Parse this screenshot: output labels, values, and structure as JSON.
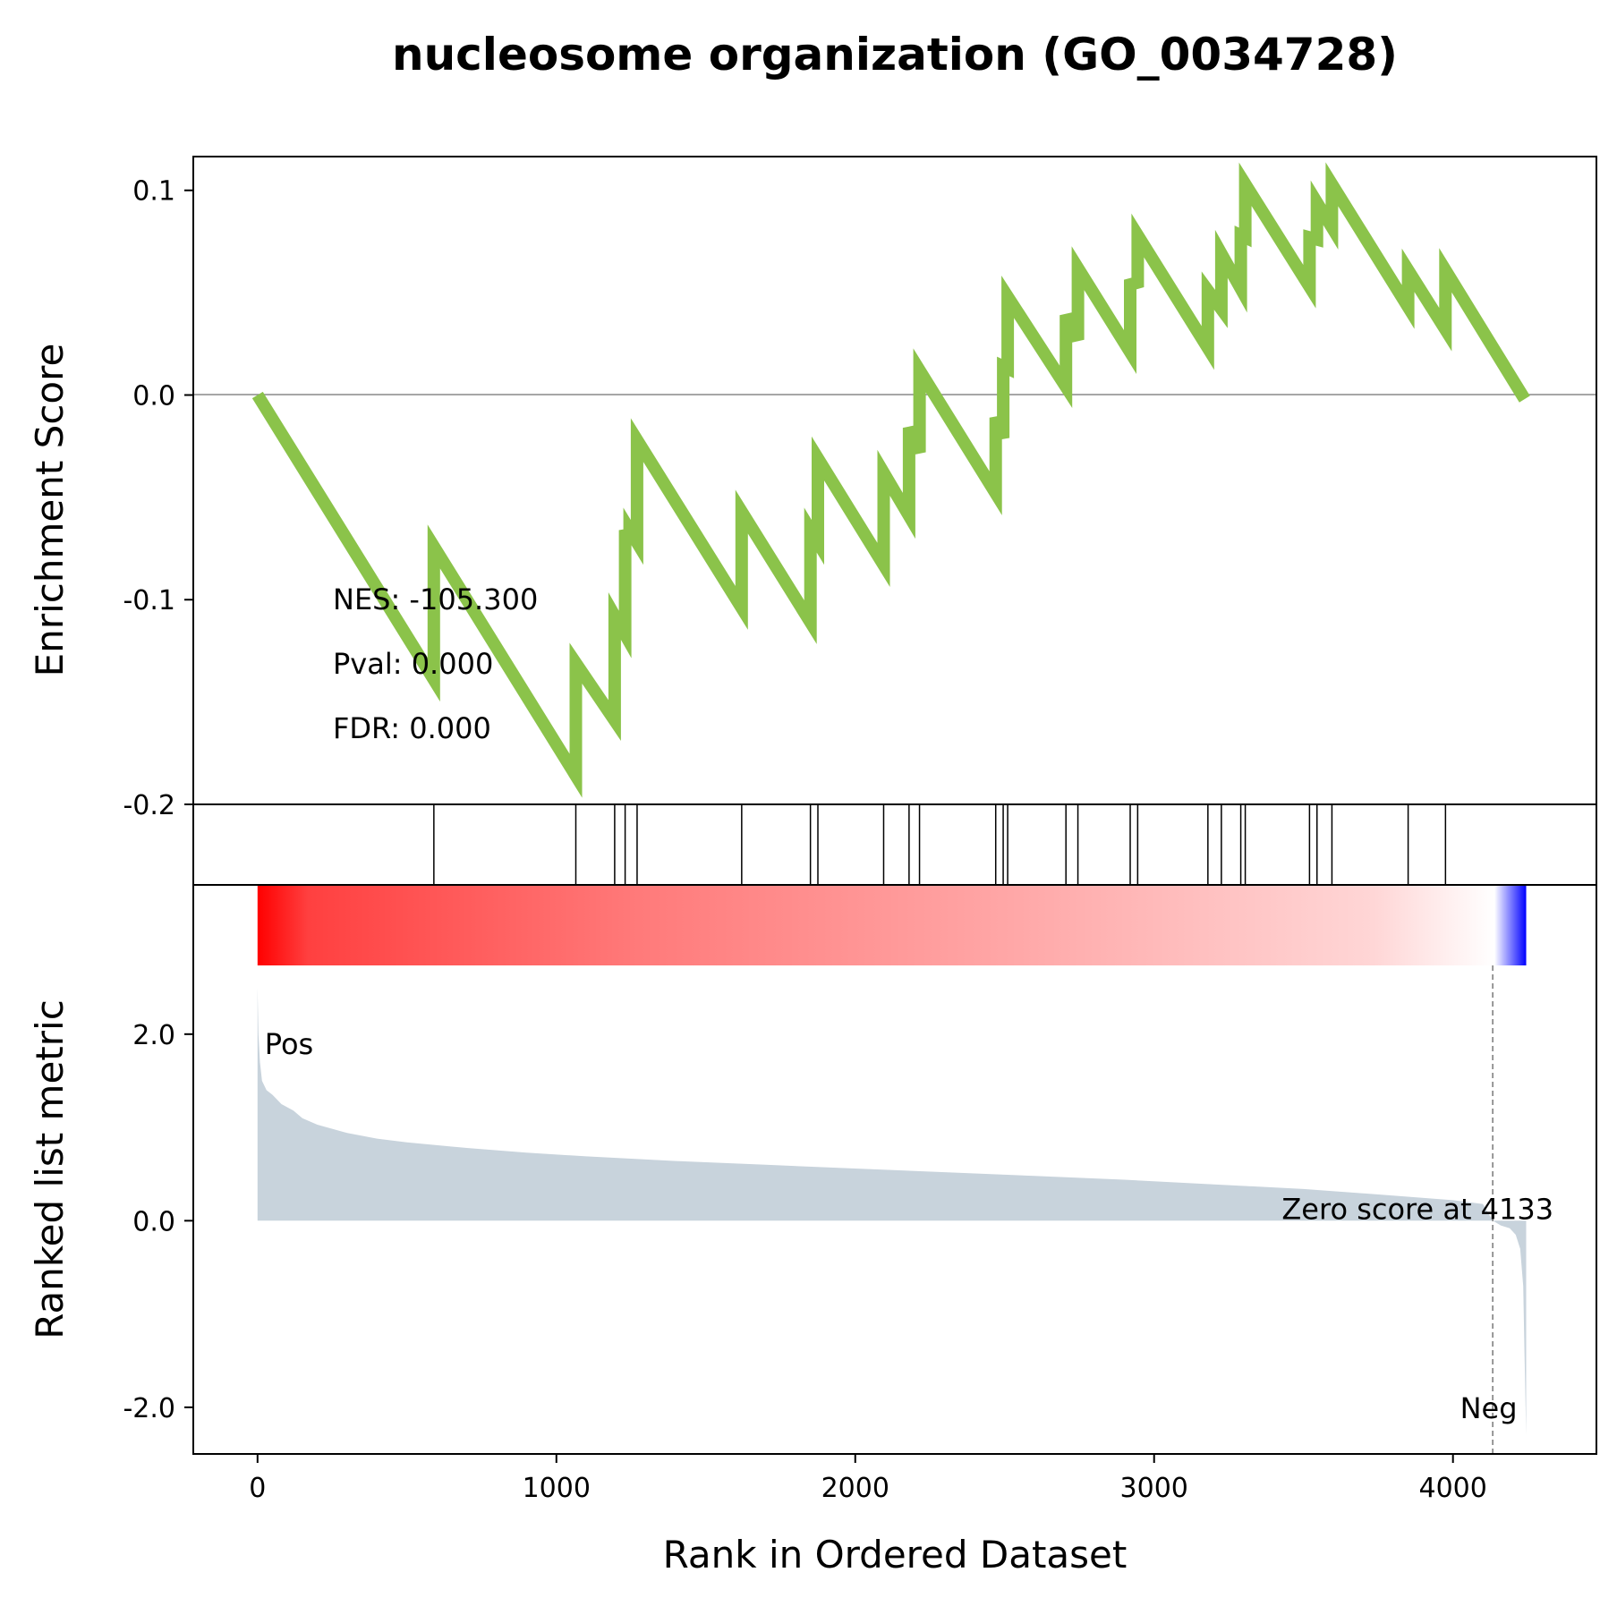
{
  "chart_data": {
    "type": "line",
    "title": "nucleosome organization (GO_0034728)",
    "xlabel": "Rank in Ordered Dataset",
    "x_ticks": [
      0,
      1000,
      2000,
      3000,
      4000
    ],
    "xlim": [
      -215,
      4480
    ],
    "es_panel": {
      "ylabel": "Enrichment Score",
      "ylim": [
        -0.2,
        0.1165
      ],
      "y_ticks": [
        0.1,
        0.0,
        -0.1,
        -0.2
      ],
      "y_tick_labels": [
        "0.1",
        "0.0",
        "-0.1",
        "-0.2"
      ],
      "zero_line": true,
      "line_color": "#8bc34a",
      "running_es": {
        "x": [
          0,
          590,
          590,
          1065,
          1065,
          1195,
          1195,
          1230,
          1230,
          1245,
          1245,
          1270,
          1270,
          1620,
          1620,
          1850,
          1850,
          1875,
          1875,
          2095,
          2095,
          2180,
          2180,
          2215,
          2215,
          2470,
          2470,
          2495,
          2495,
          2510,
          2510,
          2705,
          2705,
          2745,
          2745,
          2920,
          2920,
          2945,
          2945,
          3180,
          3180,
          3225,
          3225,
          3290,
          3290,
          3305,
          3305,
          3520,
          3520,
          3545,
          3545,
          3595,
          3595,
          3850,
          3850,
          3975,
          3975,
          4240
        ],
        "y": [
          0.0,
          -0.139,
          -0.074,
          -0.186,
          -0.131,
          -0.159,
          -0.108,
          -0.117,
          -0.066,
          -0.072,
          -0.066,
          -0.072,
          -0.022,
          -0.104,
          -0.057,
          -0.111,
          -0.066,
          -0.072,
          -0.031,
          -0.083,
          -0.038,
          -0.059,
          -0.016,
          -0.028,
          0.012,
          -0.048,
          -0.011,
          -0.021,
          0.014,
          0.013,
          0.048,
          0.004,
          0.039,
          0.027,
          0.062,
          0.021,
          0.054,
          0.055,
          0.078,
          0.023,
          0.051,
          0.042,
          0.069,
          0.052,
          0.078,
          0.077,
          0.103,
          0.053,
          0.077,
          0.076,
          0.094,
          0.082,
          0.103,
          0.043,
          0.061,
          0.032,
          0.061,
          -0.002
        ]
      },
      "stats": [
        "NES: -105.300",
        "Pval: 0.000",
        "FDR: 0.000"
      ]
    },
    "hits_panel": {
      "hit_ranks": [
        590,
        1065,
        1195,
        1230,
        1270,
        1620,
        1850,
        1875,
        2095,
        2180,
        2215,
        2470,
        2495,
        2510,
        2705,
        2745,
        2920,
        2945,
        3180,
        3225,
        3290,
        3305,
        3520,
        3545,
        3595,
        3850,
        3975
      ]
    },
    "ranked_panel": {
      "ylabel": "Ranked list metric",
      "ylim": [
        -2.5,
        3.6
      ],
      "y_ticks": [
        2.0,
        0.0,
        -2.0
      ],
      "y_tick_labels": [
        "2.0",
        "0.0",
        "-2.0"
      ],
      "fill_color": "#c8d3dc",
      "colorbar_from": "#ff0000",
      "colorbar_to": "#0000ff",
      "metric_curve": {
        "x": [
          0,
          3,
          8,
          15,
          30,
          50,
          80,
          120,
          150,
          200,
          300,
          400,
          500,
          700,
          900,
          1100,
          1400,
          1700,
          2000,
          2300,
          2600,
          2900,
          3200,
          3500,
          3800,
          4000,
          4100,
          4133,
          4160,
          4190,
          4210,
          4225,
          4235,
          4240,
          4245
        ],
        "y": [
          2.5,
          2.0,
          1.7,
          1.5,
          1.4,
          1.35,
          1.25,
          1.18,
          1.1,
          1.03,
          0.94,
          0.88,
          0.84,
          0.78,
          0.73,
          0.69,
          0.64,
          0.6,
          0.56,
          0.52,
          0.48,
          0.44,
          0.39,
          0.34,
          0.27,
          0.22,
          0.18,
          0.0,
          -0.05,
          -0.08,
          -0.15,
          -0.3,
          -0.7,
          -1.5,
          -2.3
        ]
      },
      "zero_score_rank": 4133,
      "zero_score_label": "Zero score at 4133",
      "pos_label": "Pos",
      "neg_label": "Neg",
      "pos_color": "#ff0000",
      "neg_color": "#0000ff"
    }
  }
}
